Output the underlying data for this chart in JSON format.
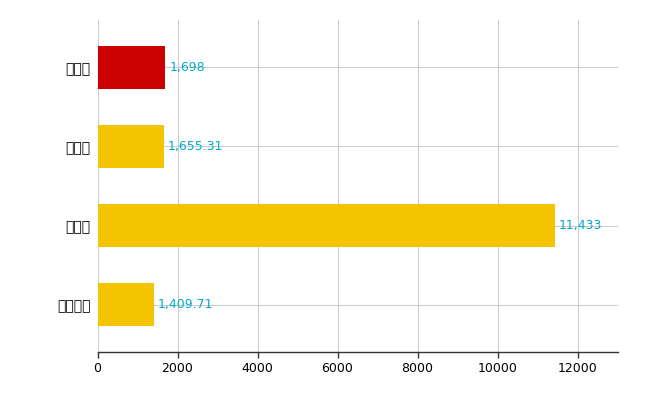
{
  "categories": [
    "掛川市",
    "県平均",
    "県最大",
    "全国平均"
  ],
  "values": [
    1698,
    1655.31,
    11433,
    1409.71
  ],
  "bar_colors": [
    "#cc0000",
    "#f5c400",
    "#f5c400",
    "#f5c400"
  ],
  "value_labels": [
    "1,698",
    "1,655.31",
    "11,433",
    "1,409.71"
  ],
  "label_color": "#00aacc",
  "xlim": [
    0,
    13000
  ],
  "xticks": [
    0,
    2000,
    4000,
    6000,
    8000,
    10000,
    12000
  ],
  "xtick_labels": [
    "0",
    "2000",
    "4000",
    "6000",
    "8000",
    "10000",
    "12000"
  ],
  "background_color": "#ffffff",
  "grid_color": "#cccccc",
  "bar_height": 0.55,
  "label_fontsize": 9,
  "tick_fontsize": 9,
  "category_fontsize": 10
}
